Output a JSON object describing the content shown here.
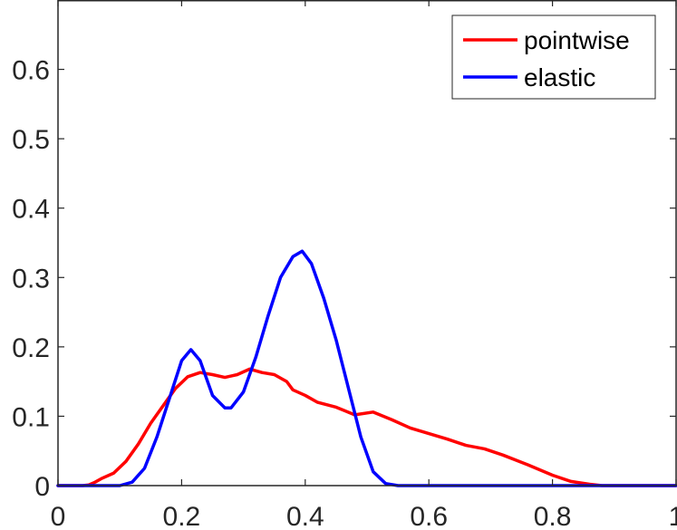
{
  "chart_data": {
    "type": "line",
    "title": "",
    "xlabel": "",
    "ylabel": "",
    "xlim": [
      0,
      1
    ],
    "ylim": [
      0,
      0.7
    ],
    "xticks": [
      0,
      0.2,
      0.4,
      0.6,
      0.8,
      1
    ],
    "xtick_labels": [
      "0",
      "0.2",
      "0.4",
      "0.6",
      "0.8",
      "1"
    ],
    "yticks": [
      0,
      0.1,
      0.2,
      0.3,
      0.4,
      0.5,
      0.6
    ],
    "ytick_labels": [
      "0",
      "0.1",
      "0.2",
      "0.3",
      "0.4",
      "0.5",
      "0.6"
    ],
    "grid": false,
    "legend_position": "top-right",
    "series": [
      {
        "name": "pointwise",
        "color": "#ff0000",
        "x": [
          0,
          0.04,
          0.05,
          0.06,
          0.07,
          0.09,
          0.11,
          0.13,
          0.15,
          0.17,
          0.19,
          0.21,
          0.23,
          0.25,
          0.27,
          0.29,
          0.31,
          0.33,
          0.35,
          0.37,
          0.38,
          0.4,
          0.42,
          0.45,
          0.48,
          0.51,
          0.54,
          0.57,
          0.6,
          0.63,
          0.66,
          0.69,
          0.72,
          0.76,
          0.8,
          0.83,
          0.86,
          0.88,
          0.95,
          1.0
        ],
        "y": [
          0,
          0,
          0.001,
          0.005,
          0.01,
          0.018,
          0.035,
          0.06,
          0.09,
          0.115,
          0.14,
          0.157,
          0.163,
          0.16,
          0.156,
          0.16,
          0.168,
          0.163,
          0.16,
          0.15,
          0.138,
          0.13,
          0.12,
          0.113,
          0.102,
          0.106,
          0.095,
          0.083,
          0.075,
          0.067,
          0.058,
          0.053,
          0.044,
          0.03,
          0.015,
          0.006,
          0.002,
          0,
          0,
          0
        ]
      },
      {
        "name": "elastic",
        "color": "#0000ff",
        "x": [
          0,
          0.1,
          0.12,
          0.14,
          0.16,
          0.18,
          0.2,
          0.215,
          0.23,
          0.25,
          0.27,
          0.28,
          0.3,
          0.32,
          0.34,
          0.36,
          0.38,
          0.395,
          0.41,
          0.43,
          0.45,
          0.47,
          0.49,
          0.51,
          0.53,
          0.55,
          0.6,
          1.0
        ],
        "y": [
          0,
          0,
          0.005,
          0.025,
          0.07,
          0.125,
          0.18,
          0.196,
          0.18,
          0.13,
          0.112,
          0.112,
          0.135,
          0.185,
          0.245,
          0.3,
          0.33,
          0.338,
          0.32,
          0.27,
          0.21,
          0.14,
          0.07,
          0.02,
          0.003,
          0,
          0,
          0
        ]
      }
    ]
  }
}
